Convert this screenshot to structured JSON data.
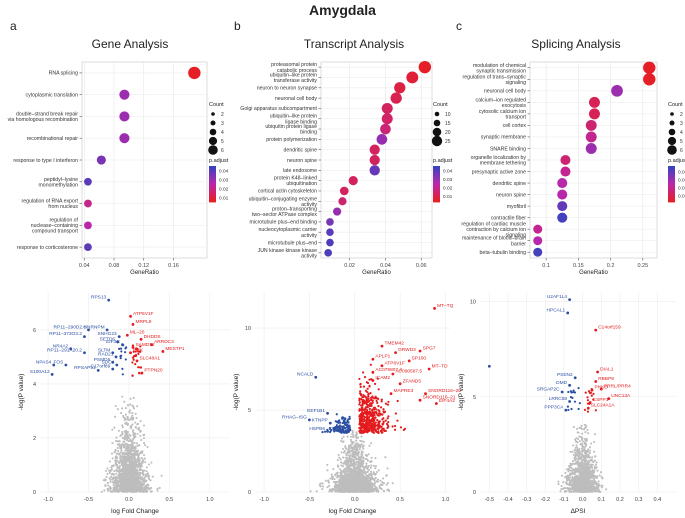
{
  "figure_title": "Amygdala",
  "chart_data": [
    {
      "id": "a",
      "type": "scatter",
      "subtype": "dotplot",
      "panel_label": "a",
      "title": "Gene Analysis",
      "xlabel": "GeneRatio",
      "xlim": [
        0.037,
        0.205
      ],
      "xticks": [
        0.04,
        0.08,
        0.12,
        0.16
      ],
      "categories": [
        {
          "label": [
            "RNA splicing"
          ],
          "x": 0.188,
          "count": 6,
          "padj": 0.005
        },
        {
          "label": [
            "cytoplasmic translation"
          ],
          "x": 0.094,
          "count": 3,
          "padj": 0.03
        },
        {
          "label": [
            "double–strand break repair",
            "via homologous recombination"
          ],
          "x": 0.094,
          "count": 3,
          "padj": 0.03
        },
        {
          "label": [
            "recombinational repair"
          ],
          "x": 0.094,
          "count": 3,
          "padj": 0.03
        },
        {
          "label": [
            "response to type I interferon"
          ],
          "x": 0.063,
          "count": 2,
          "padj": 0.035
        },
        {
          "label": [
            "peptidyl–lysine",
            "monomethylation"
          ],
          "x": 0.045,
          "count": 1,
          "padj": 0.04
        },
        {
          "label": [
            "regulation of RNA export",
            "from nucleus"
          ],
          "x": 0.045,
          "count": 1,
          "padj": 0.02
        },
        {
          "label": [
            "regulation of",
            "nuclease–containing",
            "compound transport"
          ],
          "x": 0.045,
          "count": 1,
          "padj": 0.025
        },
        {
          "label": [
            "response to corticosterone"
          ],
          "x": 0.045,
          "count": 1,
          "padj": 0.04
        }
      ],
      "size_legend": {
        "title": "Count",
        "values": [
          2,
          3,
          4,
          5,
          6
        ]
      },
      "color_legend": {
        "title": "p.adjust",
        "values": [
          0.04,
          0.03,
          0.02,
          0.01
        ],
        "low": 0.005,
        "high": 0.045
      }
    },
    {
      "id": "b",
      "type": "scatter",
      "subtype": "dotplot",
      "panel_label": "b",
      "title": "Transcript Analysis",
      "xlabel": "GeneRatio",
      "xlim": [
        0.004,
        0.066
      ],
      "xticks": [
        0.02,
        0.04,
        0.06
      ],
      "categories": [
        {
          "label": [
            "proteasomal protein",
            "catabolic process"
          ],
          "x": 0.062,
          "count": 16,
          "padj": 0.003
        },
        {
          "label": [
            "ubiquitin–like protein",
            "transferase activity"
          ],
          "x": 0.055,
          "count": 14,
          "padj": 0.006
        },
        {
          "label": [
            "neuron to neuron synapse"
          ],
          "x": 0.048,
          "count": 12,
          "padj": 0.008
        },
        {
          "label": [
            "neuronal cell body"
          ],
          "x": 0.046,
          "count": 12,
          "padj": 0.01
        },
        {
          "label": [
            "Golgi apparatus subcompartment"
          ],
          "x": 0.041,
          "count": 11,
          "padj": 0.012
        },
        {
          "label": [
            "ubiquitin–like protein",
            "ligase binding"
          ],
          "x": 0.041,
          "count": 11,
          "padj": 0.013
        },
        {
          "label": [
            "ubiquitin protein ligase",
            "binding"
          ],
          "x": 0.04,
          "count": 10,
          "padj": 0.016
        },
        {
          "label": [
            "protein polymerization"
          ],
          "x": 0.038,
          "count": 10,
          "padj": 0.03
        },
        {
          "label": [
            "dendritic spine"
          ],
          "x": 0.034,
          "count": 9,
          "padj": 0.012
        },
        {
          "label": [
            "neuron spine"
          ],
          "x": 0.034,
          "count": 9,
          "padj": 0.012
        },
        {
          "label": [
            "late endosome"
          ],
          "x": 0.034,
          "count": 9,
          "padj": 0.038
        },
        {
          "label": [
            "protein K48–linked",
            "ubiquitination"
          ],
          "x": 0.022,
          "count": 6,
          "padj": 0.012
        },
        {
          "label": [
            "cortical actin cytoskeleton"
          ],
          "x": 0.017,
          "count": 5,
          "padj": 0.012
        },
        {
          "label": [
            "ubiquitin–conjugating enzyme",
            "activity"
          ],
          "x": 0.016,
          "count": 4,
          "padj": 0.015
        },
        {
          "label": [
            "proton–transporting",
            "two–sector ATPase complex"
          ],
          "x": 0.013,
          "count": 4,
          "padj": 0.03
        },
        {
          "label": [
            "microtubule plus–end binding"
          ],
          "x": 0.009,
          "count": 3,
          "padj": 0.035
        },
        {
          "label": [
            "nucleocytoplasmic carrier",
            "activity"
          ],
          "x": 0.009,
          "count": 3,
          "padj": 0.04
        },
        {
          "label": [
            "microtubule plus–end"
          ],
          "x": 0.009,
          "count": 3,
          "padj": 0.042
        },
        {
          "label": [
            "JUN kinase kinase kinase",
            "activity"
          ],
          "x": 0.008,
          "count": 3,
          "padj": 0.042
        }
      ],
      "size_legend": {
        "title": "Count",
        "values": [
          10,
          15,
          20,
          25
        ]
      },
      "color_legend": {
        "title": "p.adjust",
        "values": [
          0.04,
          0.03,
          0.02,
          0.01
        ],
        "low": 0.003,
        "high": 0.045
      }
    },
    {
      "id": "c",
      "type": "scatter",
      "subtype": "dotplot",
      "panel_label": "c",
      "title": "Splicing Analysis",
      "xlabel": "GeneRatio",
      "xlim": [
        0.075,
        0.272
      ],
      "xticks": [
        0.1,
        0.15,
        0.2,
        0.25
      ],
      "categories": [
        {
          "label": [
            "modulation of chemical",
            "synaptic transmission"
          ],
          "x": 0.26,
          "count": 6,
          "padj": 0.002
        },
        {
          "label": [
            "regulation of trans–synaptic",
            "signaling"
          ],
          "x": 0.26,
          "count": 6,
          "padj": 0.002
        },
        {
          "label": [
            "neuronal cell body"
          ],
          "x": 0.21,
          "count": 5,
          "padj": 0.03
        },
        {
          "label": [
            "calcium–ion regulated",
            "exocytosis"
          ],
          "x": 0.175,
          "count": 4,
          "padj": 0.01
        },
        {
          "label": [
            "cytosolic calcium ion",
            "transport"
          ],
          "x": 0.175,
          "count": 4,
          "padj": 0.01
        },
        {
          "label": [
            "cell cortex"
          ],
          "x": 0.17,
          "count": 4,
          "padj": 0.015
        },
        {
          "label": [
            "synaptic membrane"
          ],
          "x": 0.17,
          "count": 4,
          "padj": 0.02
        },
        {
          "label": [
            "SNARE binding"
          ],
          "x": 0.17,
          "count": 4,
          "padj": 0.03
        },
        {
          "label": [
            "organelle localization by",
            "membrane tethering"
          ],
          "x": 0.13,
          "count": 3,
          "padj": 0.015
        },
        {
          "label": [
            "presynaptic active zone"
          ],
          "x": 0.13,
          "count": 3,
          "padj": 0.02
        },
        {
          "label": [
            "dendritic spine"
          ],
          "x": 0.125,
          "count": 3,
          "padj": 0.025
        },
        {
          "label": [
            "neuron spine"
          ],
          "x": 0.125,
          "count": 3,
          "padj": 0.025
        },
        {
          "label": [
            "myofibril"
          ],
          "x": 0.125,
          "count": 3,
          "padj": 0.04
        },
        {
          "label": [
            "contractile fiber"
          ],
          "x": 0.125,
          "count": 3,
          "padj": 0.045
        },
        {
          "label": [
            "regulation of cardiac muscle",
            "contraction by calcium ion",
            "signaling"
          ],
          "x": 0.087,
          "count": 2,
          "padj": 0.02
        },
        {
          "label": [
            "maintenance of blood–brain",
            "barrier"
          ],
          "x": 0.087,
          "count": 2,
          "padj": 0.025
        },
        {
          "label": [
            "beta–tubulin binding"
          ],
          "x": 0.087,
          "count": 2,
          "padj": 0.045
        }
      ],
      "size_legend": {
        "title": "Count",
        "values": [
          2,
          3,
          4,
          5,
          6
        ]
      },
      "color_legend": {
        "title": "p.adjust",
        "values": [
          0.04,
          0.03,
          0.02,
          0.01
        ],
        "low": 0.002,
        "high": 0.047
      }
    },
    {
      "id": "d",
      "type": "scatter",
      "subtype": "volcano",
      "xlabel": "log Fold Change",
      "ylabel": "-log(P value)",
      "xlim": [
        -1.1,
        1.25
      ],
      "ylim": [
        0,
        7.4
      ],
      "xticks": [
        -1.0,
        -0.5,
        0.0,
        0.5,
        1.0
      ],
      "yticks": [
        0,
        2,
        4,
        6
      ],
      "background_count": 1500,
      "points": [
        {
          "label": "RPS13",
          "x": -0.25,
          "y": 7.1,
          "side": "down"
        },
        {
          "label": "HNRNPM",
          "x": -0.27,
          "y": 6.0,
          "side": "down"
        },
        {
          "label": "RP11–290D2.6",
          "x": -0.5,
          "y": 6.0,
          "side": "down"
        },
        {
          "label": "RP11–373O3.2",
          "x": -0.55,
          "y": 5.75,
          "side": "down"
        },
        {
          "label": "SNHG23",
          "x": -0.12,
          "y": 5.75,
          "side": "down"
        },
        {
          "label": "SETD6",
          "x": -0.14,
          "y": 5.55,
          "side": "down"
        },
        {
          "label": "EIF3G",
          "x": -0.08,
          "y": 5.45,
          "side": "down"
        },
        {
          "label": "NR4A2",
          "x": -0.72,
          "y": 5.3,
          "side": "down"
        },
        {
          "label": "RP11–291A20.2",
          "x": -0.55,
          "y": 5.15,
          "side": "down"
        },
        {
          "label": "SLTM",
          "x": -0.2,
          "y": 5.15,
          "side": "down"
        },
        {
          "label": "RAD21",
          "x": -0.16,
          "y": 5.0,
          "side": "down"
        },
        {
          "label": "NPAS4",
          "x": -0.93,
          "y": 4.7,
          "side": "down"
        },
        {
          "label": "FOS",
          "x": -0.78,
          "y": 4.7,
          "side": "down"
        },
        {
          "label": "PSMD5",
          "x": -0.2,
          "y": 4.8,
          "side": "down"
        },
        {
          "label": "SDC4",
          "x": -0.15,
          "y": 4.7,
          "side": "down"
        },
        {
          "label": "RPSAP51",
          "x": -0.38,
          "y": 4.5,
          "side": "down"
        },
        {
          "label": "C17orf89",
          "x": -0.2,
          "y": 4.55,
          "side": "down"
        },
        {
          "label": "S100A12",
          "x": -0.95,
          "y": 4.35,
          "side": "down"
        },
        {
          "label": "ATP6V1F",
          "x": 0.02,
          "y": 6.5,
          "side": "up"
        },
        {
          "label": "MRPL9",
          "x": 0.05,
          "y": 6.2,
          "side": "up"
        },
        {
          "label": "ML–20",
          "x": -0.02,
          "y": 5.8,
          "side": "up"
        },
        {
          "label": "DHDDS",
          "x": 0.15,
          "y": 5.65,
          "side": "up"
        },
        {
          "label": "ARRDC3",
          "x": 0.28,
          "y": 5.45,
          "side": "up"
        },
        {
          "label": "SAMD12",
          "x": 0.05,
          "y": 5.35,
          "side": "up"
        },
        {
          "label": "MESTP1",
          "x": 0.42,
          "y": 5.2,
          "side": "up"
        },
        {
          "label": "KHK",
          "x": 0.02,
          "y": 5.15,
          "side": "up"
        },
        {
          "label": "SLC48A1",
          "x": 0.1,
          "y": 4.85,
          "side": "up"
        },
        {
          "label": "PTPN20",
          "x": 0.16,
          "y": 4.4,
          "side": "up"
        }
      ]
    },
    {
      "id": "e",
      "type": "scatter",
      "subtype": "volcano",
      "xlabel": "log Fold Change",
      "ylabel": "-log(P value)",
      "xlim": [
        -1.1,
        1.05
      ],
      "ylim": [
        0,
        12.2
      ],
      "xticks": [
        -1.0,
        -0.5,
        0.0,
        0.5,
        1.0
      ],
      "yticks": [
        0,
        5,
        10
      ],
      "background_count": 1700,
      "points": [
        {
          "label": "NCALD",
          "x": -0.43,
          "y": 7.0,
          "side": "down"
        },
        {
          "label": "EEF1B1",
          "x": -0.3,
          "y": 4.8,
          "side": "down"
        },
        {
          "label": "RHAG–ISG",
          "x": -0.5,
          "y": 4.4,
          "side": "down"
        },
        {
          "label": "KTNPP",
          "x": -0.27,
          "y": 4.2,
          "side": "down"
        },
        {
          "label": "HSPB6",
          "x": -0.3,
          "y": 3.7,
          "side": "down"
        },
        {
          "label": "ERB",
          "x": -0.15,
          "y": 3.7,
          "side": "down"
        },
        {
          "label": "MT–TQ",
          "x": 0.88,
          "y": 11.2,
          "side": "up"
        },
        {
          "label": "TMEM42",
          "x": 0.3,
          "y": 8.9,
          "side": "up"
        },
        {
          "label": "GRWD3",
          "x": 0.45,
          "y": 8.5,
          "side": "up"
        },
        {
          "label": "SPG7",
          "x": 0.72,
          "y": 8.6,
          "side": "up"
        },
        {
          "label": "APLP1",
          "x": 0.2,
          "y": 8.1,
          "side": "up"
        },
        {
          "label": "SP100",
          "x": 0.6,
          "y": 8.0,
          "side": "up"
        },
        {
          "label": "ATP6V1F",
          "x": 0.3,
          "y": 7.7,
          "side": "up"
        },
        {
          "label": "MT–TD",
          "x": 0.82,
          "y": 7.5,
          "side": "up"
        },
        {
          "label": "AC079807.4",
          "x": 0.2,
          "y": 7.3,
          "side": "up"
        },
        {
          "label": "AC090587.5",
          "x": 0.42,
          "y": 7.2,
          "side": "up"
        },
        {
          "label": "ICAM2",
          "x": 0.2,
          "y": 6.8,
          "side": "up"
        },
        {
          "label": "ZFAND5",
          "x": 0.5,
          "y": 6.6,
          "side": "up"
        },
        {
          "label": "MAPRE3",
          "x": 0.4,
          "y": 6.0,
          "side": "up"
        },
        {
          "label": "SNORD116–20",
          "x": 0.78,
          "y": 6.0,
          "side": "up"
        },
        {
          "label": "SNORD116–21",
          "x": 0.72,
          "y": 5.6,
          "side": "up"
        },
        {
          "label": "EIF4A2",
          "x": 0.9,
          "y": 5.4,
          "side": "up"
        }
      ]
    },
    {
      "id": "f",
      "type": "scatter",
      "subtype": "volcano",
      "xlabel": "ΔPSI",
      "ylabel": "-log(P value)",
      "xlim": [
        -0.55,
        0.5
      ],
      "ylim": [
        0,
        10.5
      ],
      "xticks": [
        -0.5,
        -0.4,
        -0.3,
        -0.2,
        -0.1,
        0.0,
        0.1,
        0.2,
        0.3,
        0.4
      ],
      "yticks": [
        0,
        5,
        10
      ],
      "background_count": 1200,
      "points": [
        {
          "label": "U2AF1L4",
          "x": -0.07,
          "y": 10.1,
          "side": "down"
        },
        {
          "label": "HPCAL1",
          "x": -0.08,
          "y": 9.4,
          "side": "down"
        },
        {
          "label": "PSEN2",
          "x": -0.04,
          "y": 6.0,
          "side": "down"
        },
        {
          "label": "DMD",
          "x": -0.07,
          "y": 5.6,
          "side": "down"
        },
        {
          "label": "SRGAP2C",
          "x": -0.11,
          "y": 5.25,
          "side": "down"
        },
        {
          "label": "LRRC58",
          "x": -0.07,
          "y": 4.75,
          "side": "down"
        },
        {
          "label": "PPP3CA",
          "x": -0.09,
          "y": 4.3,
          "side": "down"
        },
        {
          "label": "",
          "x": -0.5,
          "y": 6.6,
          "side": "down"
        },
        {
          "label": "C14orf159",
          "x": 0.07,
          "y": 8.5,
          "side": "up"
        },
        {
          "label": "DIAL1",
          "x": 0.08,
          "y": 6.3,
          "side": "up"
        },
        {
          "label": "RBBP8",
          "x": 0.07,
          "y": 5.8,
          "side": "up"
        },
        {
          "label": "PRRL/PRR4",
          "x": 0.1,
          "y": 5.4,
          "side": "up"
        },
        {
          "label": "PNKD",
          "x": 0.05,
          "y": 5.35,
          "side": "up"
        },
        {
          "label": "UNC13A",
          "x": 0.14,
          "y": 4.9,
          "side": "up"
        },
        {
          "label": "CSPP1",
          "x": 0.04,
          "y": 4.7,
          "side": "up"
        },
        {
          "label": "SLC24A1A",
          "x": 0.03,
          "y": 4.4,
          "side": "up"
        }
      ]
    }
  ]
}
